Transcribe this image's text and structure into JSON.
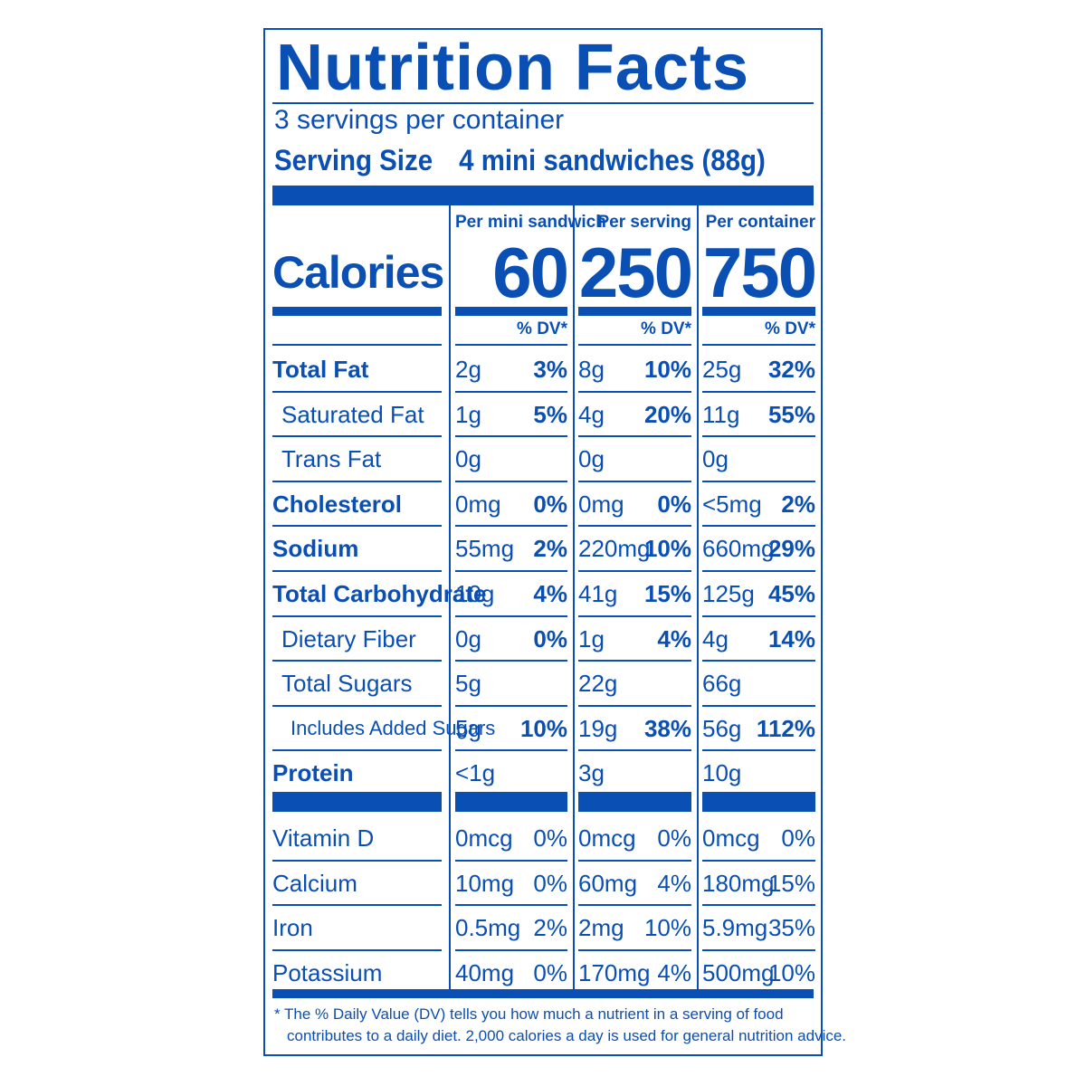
{
  "title": "Nutrition Facts",
  "servings_per_container": "3 servings per container",
  "serving_size": {
    "label": "Serving Size",
    "value": "4 mini sandwiches (88g)"
  },
  "columns": [
    {
      "header": "Per mini sandwich",
      "calories": "60"
    },
    {
      "header": "Per serving",
      "calories": "250"
    },
    {
      "header": "Per container",
      "calories": "750"
    }
  ],
  "calories_label": "Calories",
  "dv_header": "% DV*",
  "nutrients": [
    {
      "label": "Total Fat",
      "bold": true,
      "indent": 0,
      "values": [
        [
          "2g",
          "3%"
        ],
        [
          "8g",
          "10%"
        ],
        [
          "25g",
          "32%"
        ]
      ]
    },
    {
      "label": "Saturated Fat",
      "bold": false,
      "indent": 1,
      "values": [
        [
          "1g",
          "5%"
        ],
        [
          "4g",
          "20%"
        ],
        [
          "11g",
          "55%"
        ]
      ]
    },
    {
      "label": "Trans Fat",
      "bold": false,
      "indent": 1,
      "values": [
        [
          "0g",
          ""
        ],
        [
          "0g",
          ""
        ],
        [
          "0g",
          ""
        ]
      ]
    },
    {
      "label": "Cholesterol",
      "bold": true,
      "indent": 0,
      "values": [
        [
          "0mg",
          "0%"
        ],
        [
          "0mg",
          "0%"
        ],
        [
          "<5mg",
          "2%"
        ]
      ]
    },
    {
      "label": "Sodium",
      "bold": true,
      "indent": 0,
      "values": [
        [
          "55mg",
          "2%"
        ],
        [
          "220mg",
          "10%"
        ],
        [
          "660mg",
          "29%"
        ]
      ]
    },
    {
      "label": "Total Carbohydrate",
      "bold": true,
      "indent": 0,
      "values": [
        [
          "10g",
          "4%"
        ],
        [
          "41g",
          "15%"
        ],
        [
          "125g",
          "45%"
        ]
      ]
    },
    {
      "label": "Dietary Fiber",
      "bold": false,
      "indent": 1,
      "values": [
        [
          "0g",
          "0%"
        ],
        [
          "1g",
          "4%"
        ],
        [
          "4g",
          "14%"
        ]
      ]
    },
    {
      "label": "Total Sugars",
      "bold": false,
      "indent": 1,
      "values": [
        [
          "5g",
          ""
        ],
        [
          "22g",
          ""
        ],
        [
          "66g",
          ""
        ]
      ]
    },
    {
      "label": "Includes Added Sugars",
      "bold": false,
      "indent": 2,
      "values": [
        [
          "5g",
          "10%"
        ],
        [
          "19g",
          "38%"
        ],
        [
          "56g",
          "112%"
        ]
      ]
    },
    {
      "label": "Protein",
      "bold": true,
      "indent": 0,
      "values": [
        [
          "<1g",
          ""
        ],
        [
          "3g",
          ""
        ],
        [
          "10g",
          ""
        ]
      ]
    }
  ],
  "vitamins": [
    {
      "label": "Vitamin D",
      "values": [
        [
          "0mcg",
          "0%"
        ],
        [
          "0mcg",
          "0%"
        ],
        [
          "0mcg",
          "0%"
        ]
      ]
    },
    {
      "label": "Calcium",
      "values": [
        [
          "10mg",
          "0%"
        ],
        [
          "60mg",
          "4%"
        ],
        [
          "180mg",
          "15%"
        ]
      ]
    },
    {
      "label": "Iron",
      "values": [
        [
          "0.5mg",
          "2%"
        ],
        [
          "2mg",
          "10%"
        ],
        [
          "5.9mg",
          "35%"
        ]
      ]
    },
    {
      "label": "Potassium",
      "values": [
        [
          "40mg",
          "0%"
        ],
        [
          "170mg",
          "4%"
        ],
        [
          "500mg",
          "10%"
        ]
      ]
    }
  ],
  "footnote": {
    "line1": "* The % Daily Value (DV) tells you how much a nutrient in a serving of food",
    "line2": "contributes to a daily diet. 2,000 calories a day is used for general nutrition advice."
  },
  "colors": {
    "ink": "#0a4fb3",
    "background": "#ffffff"
  }
}
